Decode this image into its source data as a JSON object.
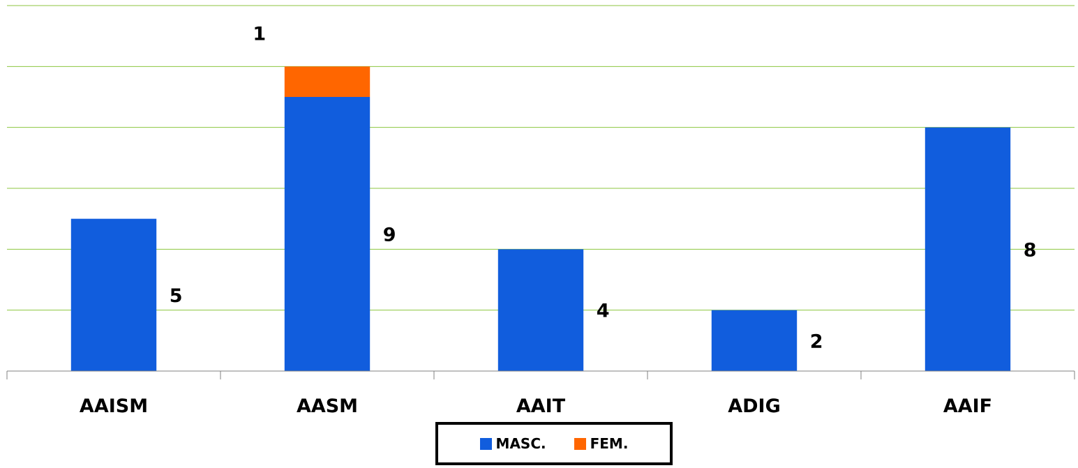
{
  "chart_data": {
    "type": "bar",
    "stacked": true,
    "categories": [
      "AAISM",
      "AASM",
      "AAIT",
      "ADIG",
      "AAIF"
    ],
    "series": [
      {
        "name": "MASC.",
        "values": [
          5,
          9,
          4,
          2,
          8
        ],
        "color": "#115ddd"
      },
      {
        "name": "FEM.",
        "values": [
          null,
          1,
          null,
          null,
          null
        ],
        "color": "#ff6600"
      }
    ],
    "data_labels": {
      "MASC.": [
        "5",
        "9",
        "4",
        "2",
        "8"
      ],
      "FEM.": [
        "",
        "1",
        "",
        "",
        ""
      ]
    },
    "ylim": [
      0,
      12
    ],
    "grid": true,
    "grid_color": "#8cc63f",
    "legend_position": "bottom-center",
    "title": "",
    "xlabel": "",
    "ylabel": ""
  },
  "legend": {
    "items": [
      {
        "label": "MASC.",
        "color": "#115ddd"
      },
      {
        "label": "FEM.",
        "color": "#ff6600"
      }
    ]
  }
}
